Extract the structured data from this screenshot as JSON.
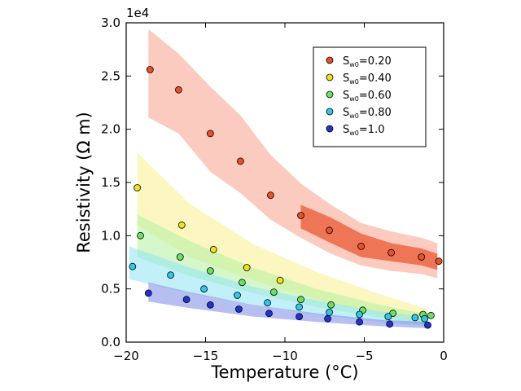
{
  "chart_data": {
    "type": "scatter",
    "title": "",
    "xlabel": "Temperature (°C)",
    "ylabel": "Resistivity (Ω m)",
    "y_offset_text": "1e4",
    "xlim": [
      -20,
      0
    ],
    "ylim": [
      0,
      30000
    ],
    "xticks": [
      -20,
      -15,
      -10,
      -5,
      0
    ],
    "xtick_labels": [
      "−20",
      "−15",
      "−10",
      "−5",
      "0"
    ],
    "yticks": [
      0,
      5000,
      10000,
      15000,
      20000,
      25000,
      30000
    ],
    "ytick_labels": [
      "0.0",
      "0.5",
      "1.0",
      "1.5",
      "2.0",
      "2.5",
      "3.0"
    ],
    "grid": false,
    "legend_position": "upper-right",
    "series": [
      {
        "name": "S_w0=0.20",
        "legend_main": "S",
        "legend_sub": "w0",
        "legend_rest": "=0.20",
        "color": "#e8502a",
        "band_color": "#f9a08c",
        "x": [
          -18.5,
          -16.7,
          -14.7,
          -12.8,
          -10.9,
          -9.0,
          -7.2,
          -5.2,
          -3.3,
          -1.4,
          -0.3
        ],
        "values": [
          25600,
          23700,
          19600,
          17000,
          13800,
          11900,
          10500,
          9000,
          8400,
          8000,
          7600
        ],
        "band": {
          "x": [
            -18.6,
            -16.7,
            -14.7,
            -12.8,
            -10.9,
            -9.0,
            -7.1,
            -5.2,
            -3.3,
            -1.4,
            -0.4
          ],
          "upper": [
            29400,
            27100,
            24000,
            21300,
            17600,
            14900,
            12900,
            11200,
            10400,
            9800,
            9300
          ],
          "lower": [
            21100,
            19600,
            16000,
            14000,
            11500,
            9800,
            8300,
            7200,
            6700,
            6400,
            6000
          ]
        },
        "inner_band": {
          "x": [
            -9.0,
            -7.1,
            -5.2,
            -3.3,
            -1.4,
            -0.4
          ],
          "upper": [
            12900,
            11700,
            10200,
            9300,
            8800,
            8300
          ],
          "lower": [
            10700,
            9300,
            8000,
            7600,
            7200,
            6800
          ]
        }
      },
      {
        "name": "S_w0=0.40",
        "legend_main": "S",
        "legend_sub": "w0",
        "legend_rest": "=0.40",
        "color": "#f0e020",
        "band_color": "#f9f08c",
        "x": [
          -19.3,
          -16.5,
          -14.5,
          -12.4,
          -10.3
        ],
        "values": [
          14500,
          11000,
          8700,
          7000,
          5800
        ],
        "band": {
          "x": [
            -19.3,
            -16.0,
            -12.0,
            -8.0,
            -4.0,
            -1.0
          ],
          "upper": [
            17800,
            13000,
            9200,
            6600,
            4500,
            3100
          ],
          "lower": [
            11000,
            8000,
            5800,
            4000,
            2600,
            1700
          ]
        }
      },
      {
        "name": "S_w0=0.60",
        "legend_main": "S",
        "legend_sub": "w0",
        "legend_rest": "=0.60",
        "color": "#6ee060",
        "band_color": "#b3f0a0",
        "x": [
          -19.1,
          -16.6,
          -14.7,
          -12.7,
          -10.7,
          -9.0,
          -7.1,
          -5.1,
          -3.2,
          -1.3,
          -0.8
        ],
        "values": [
          10000,
          8000,
          6700,
          5600,
          4700,
          4000,
          3500,
          3000,
          2700,
          2600,
          2500
        ],
        "band": {
          "x": [
            -19.3,
            -16.0,
            -12.0,
            -8.0,
            -4.0,
            -1.0
          ],
          "upper": [
            12000,
            9500,
            7000,
            5000,
            3500,
            2600
          ],
          "lower": [
            8000,
            6200,
            4600,
            3300,
            2300,
            1600
          ]
        }
      },
      {
        "name": "S_w0=0.80",
        "legend_main": "S",
        "legend_sub": "w0",
        "legend_rest": "=0.80",
        "color": "#30c8e8",
        "band_color": "#90e4f4",
        "x": [
          -19.6,
          -17.2,
          -15.1,
          -13.0,
          -11.1,
          -9.1,
          -7.2,
          -5.3,
          -3.5,
          -1.8,
          -1.2
        ],
        "values": [
          7100,
          6300,
          5000,
          4400,
          3700,
          3300,
          2800,
          2600,
          2400,
          2300,
          2200
        ],
        "band": {
          "x": [
            -19.8,
            -16.0,
            -12.0,
            -8.0,
            -4.0,
            -1.0
          ],
          "upper": [
            9000,
            7000,
            5200,
            3900,
            2900,
            2300
          ],
          "lower": [
            5900,
            4600,
            3500,
            2600,
            1900,
            1500
          ]
        }
      },
      {
        "name": "S_w0=1.0",
        "legend_main": "S",
        "legend_sub": "w0",
        "legend_rest": "=1.0",
        "color": "#2035d0",
        "band_color": "#7c88e8",
        "x": [
          -18.6,
          -16.2,
          -14.7,
          -12.9,
          -11.0,
          -9.1,
          -7.3,
          -5.3,
          -3.4,
          -1.0
        ],
        "values": [
          4600,
          4000,
          3500,
          3100,
          2700,
          2400,
          2200,
          1900,
          1700,
          1600
        ],
        "band": {
          "x": [
            -18.6,
            -16.0,
            -12.0,
            -8.0,
            -4.0,
            -1.0
          ],
          "upper": [
            5600,
            4700,
            3500,
            2700,
            2100,
            1900
          ],
          "lower": [
            3800,
            3200,
            2400,
            1900,
            1500,
            1300
          ]
        }
      }
    ]
  }
}
